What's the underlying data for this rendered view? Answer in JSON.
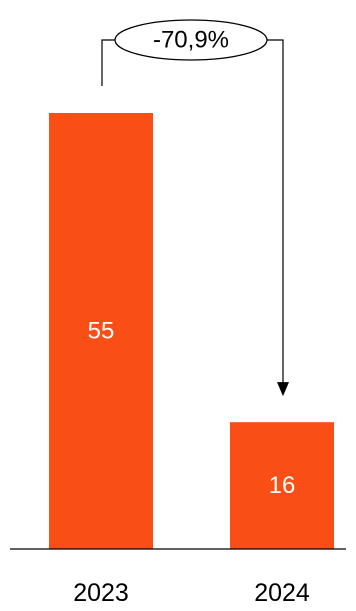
{
  "chart_data": {
    "type": "bar",
    "categories": [
      "2023",
      "2024"
    ],
    "values": [
      55,
      16
    ],
    "ylim": [
      0,
      55
    ],
    "grid": false,
    "bar_color": "#F94F16",
    "value_label_color": "#ffffff",
    "annotation": {
      "text": "-70,9%",
      "from": "2023",
      "to": "2024"
    }
  }
}
